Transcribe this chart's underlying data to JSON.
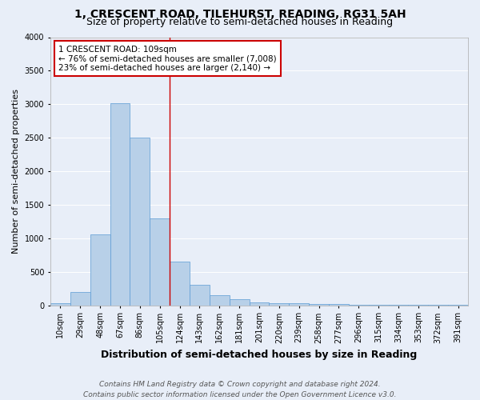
{
  "title": "1, CRESCENT ROAD, TILEHURST, READING, RG31 5AH",
  "subtitle": "Size of property relative to semi-detached houses in Reading",
  "xlabel": "Distribution of semi-detached houses by size in Reading",
  "ylabel": "Number of semi-detached properties",
  "bar_labels": [
    "10sqm",
    "29sqm",
    "48sqm",
    "67sqm",
    "86sqm",
    "105sqm",
    "124sqm",
    "143sqm",
    "162sqm",
    "181sqm",
    "201sqm",
    "220sqm",
    "239sqm",
    "258sqm",
    "277sqm",
    "296sqm",
    "315sqm",
    "334sqm",
    "353sqm",
    "372sqm",
    "391sqm"
  ],
  "bar_values": [
    30,
    200,
    1060,
    3020,
    2500,
    1290,
    650,
    310,
    150,
    90,
    40,
    35,
    25,
    20,
    15,
    10,
    8,
    5,
    4,
    3,
    2
  ],
  "bar_color": "#b8d0e8",
  "bar_edge_color": "#5b9bd5",
  "vline_color": "#cc0000",
  "vline_x_index": 5,
  "annotation_text": "1 CRESCENT ROAD: 109sqm\n← 76% of semi-detached houses are smaller (7,008)\n23% of semi-detached houses are larger (2,140) →",
  "annotation_box_facecolor": "#ffffff",
  "annotation_box_edgecolor": "#cc0000",
  "footer_text": "Contains HM Land Registry data © Crown copyright and database right 2024.\nContains public sector information licensed under the Open Government Licence v3.0.",
  "ylim": [
    0,
    4000
  ],
  "yticks": [
    0,
    500,
    1000,
    1500,
    2000,
    2500,
    3000,
    3500,
    4000
  ],
  "background_color": "#e8eef8",
  "grid_color": "#ffffff",
  "title_fontsize": 10,
  "subtitle_fontsize": 9,
  "xlabel_fontsize": 9,
  "ylabel_fontsize": 8,
  "tick_fontsize": 7,
  "annotation_fontsize": 7.5,
  "footer_fontsize": 6.5,
  "figwidth": 6.0,
  "figheight": 5.0,
  "dpi": 100
}
